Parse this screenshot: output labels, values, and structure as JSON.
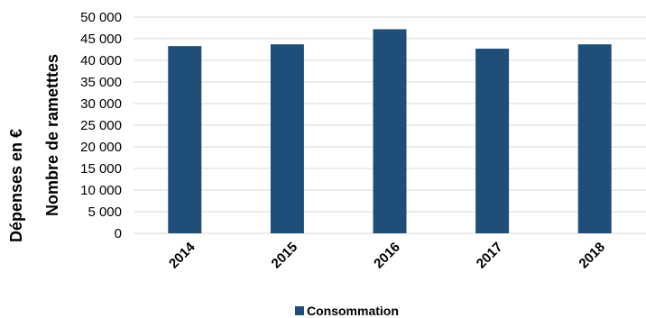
{
  "chart_data": {
    "type": "bar",
    "categories": [
      "2014",
      "2015",
      "2016",
      "2017",
      "2018"
    ],
    "series": [
      {
        "name": "Consommation",
        "values": [
          43300,
          43700,
          47200,
          42700,
          43700
        ],
        "color": "#1f4e79"
      }
    ],
    "ylim": [
      0,
      50000
    ],
    "yticks": [
      0,
      5000,
      10000,
      15000,
      20000,
      25000,
      30000,
      35000,
      40000,
      45000,
      50000
    ],
    "ytick_labels": [
      "0",
      "5 000",
      "10 000",
      "15 000",
      "20 000",
      "25 000",
      "30 000",
      "35 000",
      "40 000",
      "45 000",
      "50 000"
    ],
    "ylabel_outer": "Dépenses en €",
    "ylabel": "Nombre de rametttes",
    "xlabel": "",
    "grid": true,
    "legend_position": "bottom"
  }
}
